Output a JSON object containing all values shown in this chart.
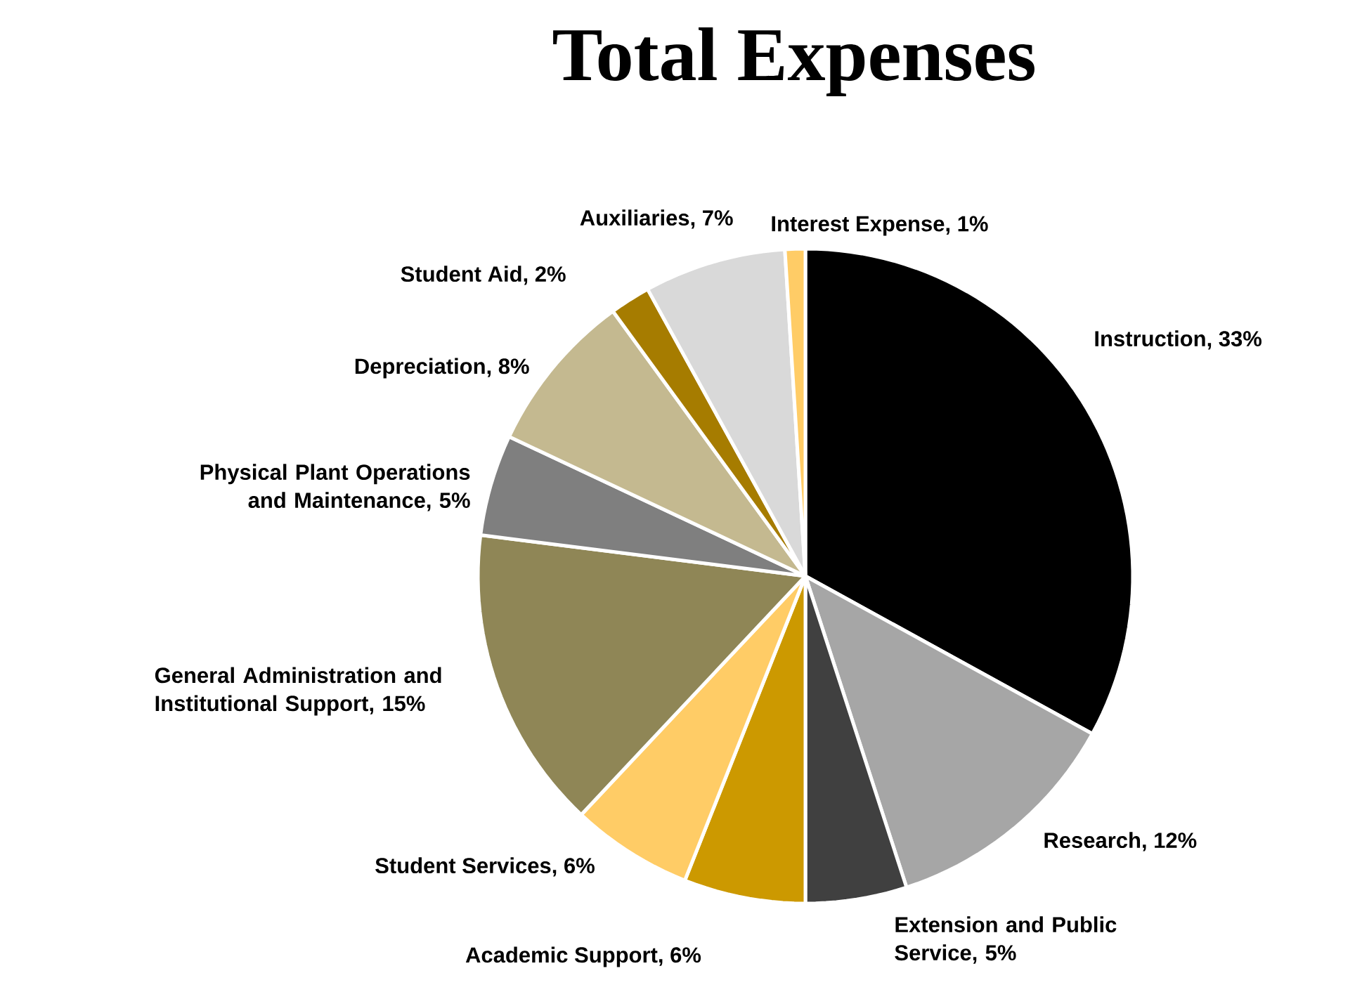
{
  "chart_data": {
    "type": "pie",
    "title": "Total Expenses",
    "categories": [
      "Instruction, 33%",
      "Research, 12%",
      "Extension and Public Service, 5%",
      "Academic Support, 6%",
      "Student Services, 6%",
      "General Administration and Institutional Support, 15%",
      "Physical Plant Operations and Maintenance, 5%",
      "Depreciation, 8%",
      "Student Aid, 2%",
      "Auxiliaries, 7%",
      "Interest Expense, 1%"
    ],
    "values": [
      33,
      12,
      5,
      6,
      6,
      15,
      5,
      8,
      2,
      7,
      1
    ],
    "colors": [
      "#000000",
      "#a6a6a6",
      "#404040",
      "#cc9900",
      "#ffcc66",
      "#8f8656",
      "#7f7f7f",
      "#c4b990",
      "#a67c00",
      "#d9d9d9",
      "#ffcc66"
    ]
  }
}
